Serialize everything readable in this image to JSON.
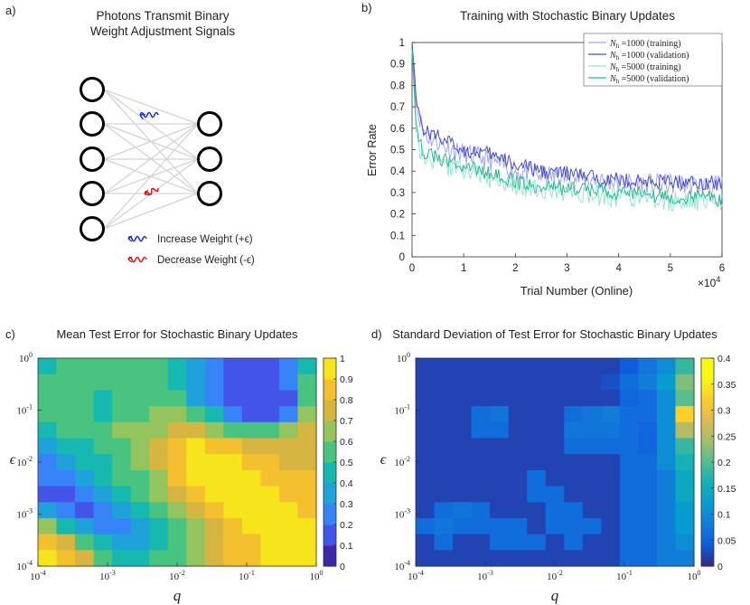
{
  "panels": {
    "a": {
      "letter": "a)",
      "title_line1": "Photons Transmit Binary",
      "title_line2": "Weight Adjustment Signals",
      "legend": [
        {
          "text": "Increase Weight (+ϵ)",
          "color": "#1f2fd6"
        },
        {
          "text": "Decrease Weight (-ϵ)",
          "color": "#e01818"
        }
      ]
    },
    "b": {
      "letter": "b)"
    },
    "c": {
      "letter": "c)"
    },
    "d": {
      "letter": "d)"
    }
  },
  "chart_data": [
    {
      "type": "line",
      "title": "Training with Stochastic Binary Updates",
      "xlabel": "Trial Number (Online)",
      "ylabel": "Error Rate",
      "x_multiplier": "×10^4",
      "xlim": [
        0,
        60000
      ],
      "ylim": [
        0,
        1
      ],
      "xticks": [
        0,
        1,
        2,
        3,
        4,
        5,
        6
      ],
      "yticks": [
        0,
        0.1,
        0.2,
        0.3,
        0.4,
        0.5,
        0.6,
        0.7,
        0.8,
        0.9,
        1
      ],
      "legend_position": "top-right",
      "x": [
        0,
        500,
        1000,
        2000,
        3000,
        4000,
        5000,
        6000,
        8000,
        10000,
        12000,
        15000,
        20000,
        25000,
        30000,
        35000,
        40000,
        45000,
        50000,
        55000,
        60000
      ],
      "series": [
        {
          "name": "N_h =1000 (training)",
          "name_math": "N",
          "name_sub": "h",
          "name_rest": " =1000 (training)",
          "color": "#a3a6e8",
          "noise": 0.05,
          "values": [
            1.0,
            0.82,
            0.7,
            0.6,
            0.56,
            0.55,
            0.54,
            0.52,
            0.5,
            0.48,
            0.47,
            0.45,
            0.4,
            0.38,
            0.37,
            0.36,
            0.35,
            0.34,
            0.34,
            0.33,
            0.33
          ]
        },
        {
          "name": "N_h =1000 (validation)",
          "name_math": "N",
          "name_sub": "h",
          "name_rest": " =1000 (validation)",
          "color": "#4a4fc8",
          "noise": 0.035,
          "values": [
            1.0,
            0.85,
            0.72,
            0.6,
            0.58,
            0.57,
            0.57,
            0.55,
            0.52,
            0.5,
            0.49,
            0.48,
            0.43,
            0.4,
            0.39,
            0.37,
            0.36,
            0.35,
            0.35,
            0.35,
            0.34
          ]
        },
        {
          "name": "N_h =5000 (training)",
          "name_math": "N",
          "name_sub": "h",
          "name_rest": " =5000 (training)",
          "color": "#98e4d0",
          "noise": 0.05,
          "values": [
            0.97,
            0.72,
            0.55,
            0.47,
            0.46,
            0.45,
            0.44,
            0.43,
            0.42,
            0.41,
            0.39,
            0.37,
            0.33,
            0.31,
            0.3,
            0.29,
            0.28,
            0.27,
            0.26,
            0.26,
            0.25
          ]
        },
        {
          "name": "N_h =5000 (validation)",
          "name_math": "N",
          "name_sub": "h",
          "name_rest": " =5000 (validation)",
          "color": "#2fb89a",
          "noise": 0.035,
          "values": [
            0.97,
            0.75,
            0.58,
            0.5,
            0.48,
            0.47,
            0.46,
            0.45,
            0.44,
            0.43,
            0.41,
            0.39,
            0.35,
            0.33,
            0.32,
            0.31,
            0.3,
            0.29,
            0.28,
            0.28,
            0.27
          ]
        }
      ]
    },
    {
      "type": "heatmap",
      "title": "Mean Test Error for Stochastic Binary Updates",
      "xlabel": "q",
      "ylabel": "ϵ",
      "x_scale": "log",
      "y_scale": "log",
      "x_ticks": [
        {
          "b": "10",
          "e": "-4"
        },
        {
          "b": "10",
          "e": "-3"
        },
        {
          "b": "10",
          "e": "-2"
        },
        {
          "b": "10",
          "e": "-1"
        },
        {
          "b": "10",
          "e": "0"
        }
      ],
      "y_ticks": [
        {
          "b": "10",
          "e": "0"
        },
        {
          "b": "10",
          "e": "-1"
        },
        {
          "b": "10",
          "e": "-2"
        },
        {
          "b": "10",
          "e": "-3"
        },
        {
          "b": "10",
          "e": "-4"
        }
      ],
      "xlim": [
        0.0001,
        1
      ],
      "ylim": [
        0.0001,
        1
      ],
      "colorbar_ticks": [
        "0",
        "0.1",
        "0.2",
        "0.3",
        "0.4",
        "0.5",
        "0.6",
        "0.7",
        "0.8",
        "0.9",
        "1"
      ],
      "clim": [
        0,
        1
      ],
      "z": [
        [
          0.48,
          0.5,
          0.52,
          0.55,
          0.58,
          0.58,
          0.55,
          0.45,
          0.3,
          0.22,
          0.18,
          0.14,
          0.14,
          0.2,
          0.45
        ],
        [
          0.55,
          0.52,
          0.52,
          0.52,
          0.55,
          0.58,
          0.55,
          0.48,
          0.32,
          0.22,
          0.16,
          0.12,
          0.12,
          0.2,
          0.5
        ],
        [
          0.55,
          0.55,
          0.5,
          0.48,
          0.5,
          0.55,
          0.58,
          0.52,
          0.38,
          0.25,
          0.18,
          0.12,
          0.1,
          0.18,
          0.55
        ],
        [
          0.55,
          0.58,
          0.5,
          0.45,
          0.5,
          0.55,
          0.62,
          0.62,
          0.55,
          0.4,
          0.25,
          0.15,
          0.12,
          0.2,
          0.62
        ],
        [
          0.48,
          0.5,
          0.55,
          0.58,
          0.6,
          0.62,
          0.66,
          0.75,
          0.72,
          0.66,
          0.58,
          0.52,
          0.55,
          0.62,
          0.75
        ],
        [
          0.38,
          0.42,
          0.48,
          0.55,
          0.58,
          0.62,
          0.75,
          0.88,
          0.9,
          0.88,
          0.8,
          0.75,
          0.72,
          0.72,
          0.72
        ],
        [
          0.25,
          0.3,
          0.42,
          0.48,
          0.55,
          0.62,
          0.72,
          0.88,
          0.92,
          0.92,
          0.9,
          0.85,
          0.8,
          0.75,
          0.75
        ],
        [
          0.2,
          0.22,
          0.32,
          0.42,
          0.5,
          0.58,
          0.68,
          0.8,
          0.9,
          0.92,
          0.92,
          0.9,
          0.85,
          0.8,
          0.8
        ],
        [
          0.15,
          0.18,
          0.22,
          0.32,
          0.42,
          0.55,
          0.62,
          0.72,
          0.85,
          0.9,
          0.92,
          0.92,
          0.9,
          0.85,
          0.85
        ],
        [
          0.35,
          0.22,
          0.18,
          0.2,
          0.3,
          0.42,
          0.55,
          0.62,
          0.72,
          0.85,
          0.9,
          0.92,
          0.92,
          0.9,
          0.88
        ],
        [
          0.62,
          0.45,
          0.3,
          0.22,
          0.25,
          0.35,
          0.48,
          0.58,
          0.65,
          0.75,
          0.85,
          0.9,
          0.92,
          0.92,
          0.9
        ],
        [
          0.88,
          0.75,
          0.55,
          0.4,
          0.32,
          0.35,
          0.45,
          0.55,
          0.62,
          0.7,
          0.8,
          0.88,
          0.9,
          0.92,
          0.92
        ],
        [
          0.92,
          0.88,
          0.72,
          0.58,
          0.48,
          0.45,
          0.5,
          0.58,
          0.65,
          0.72,
          0.8,
          0.85,
          0.9,
          0.9,
          0.92
        ]
      ]
    },
    {
      "type": "heatmap",
      "title": "Standard Deviation of Test Error for Stochastic Binary Updates",
      "xlabel": "q",
      "ylabel": "ϵ",
      "x_scale": "log",
      "y_scale": "log",
      "x_ticks": [
        {
          "b": "10",
          "e": "-4"
        },
        {
          "b": "10",
          "e": "-3"
        },
        {
          "b": "10",
          "e": "-2"
        },
        {
          "b": "10",
          "e": "-1"
        },
        {
          "b": "10",
          "e": "0"
        }
      ],
      "y_ticks": [
        {
          "b": "10",
          "e": "0"
        },
        {
          "b": "10",
          "e": "-1"
        },
        {
          "b": "10",
          "e": "-2"
        },
        {
          "b": "10",
          "e": "-3"
        },
        {
          "b": "10",
          "e": "-4"
        }
      ],
      "xlim": [
        0.0001,
        1
      ],
      "ylim": [
        0.0001,
        1
      ],
      "colorbar_ticks": [
        "0",
        "0.05",
        "0.1",
        "0.15",
        "0.2",
        "0.25",
        "0.3",
        "0.35",
        "0.4"
      ],
      "clim": [
        0,
        0.4
      ],
      "z": [
        [
          0.02,
          0.02,
          0.02,
          0.02,
          0.02,
          0.02,
          0.02,
          0.02,
          0.02,
          0.02,
          0.02,
          0.04,
          0.07,
          0.1,
          0.18
        ],
        [
          0.02,
          0.02,
          0.02,
          0.02,
          0.02,
          0.02,
          0.02,
          0.02,
          0.02,
          0.02,
          0.03,
          0.06,
          0.08,
          0.12,
          0.22
        ],
        [
          0.02,
          0.02,
          0.02,
          0.02,
          0.02,
          0.02,
          0.02,
          0.02,
          0.02,
          0.02,
          0.02,
          0.05,
          0.06,
          0.1,
          0.2
        ],
        [
          0.02,
          0.02,
          0.02,
          0.06,
          0.07,
          0.02,
          0.02,
          0.02,
          0.06,
          0.07,
          0.08,
          0.06,
          0.06,
          0.1,
          0.32
        ],
        [
          0.02,
          0.02,
          0.02,
          0.06,
          0.06,
          0.02,
          0.02,
          0.02,
          0.07,
          0.07,
          0.07,
          0.06,
          0.05,
          0.1,
          0.25
        ],
        [
          0.02,
          0.02,
          0.02,
          0.02,
          0.02,
          0.02,
          0.02,
          0.02,
          0.06,
          0.06,
          0.06,
          0.06,
          0.05,
          0.1,
          0.18
        ],
        [
          0.02,
          0.02,
          0.02,
          0.02,
          0.02,
          0.02,
          0.02,
          0.02,
          0.02,
          0.02,
          0.02,
          0.06,
          0.06,
          0.1,
          0.16
        ],
        [
          0.02,
          0.02,
          0.02,
          0.02,
          0.02,
          0.02,
          0.06,
          0.02,
          0.02,
          0.02,
          0.02,
          0.06,
          0.06,
          0.08,
          0.14
        ],
        [
          0.02,
          0.02,
          0.02,
          0.02,
          0.02,
          0.02,
          0.06,
          0.06,
          0.02,
          0.02,
          0.02,
          0.06,
          0.06,
          0.08,
          0.14
        ],
        [
          0.02,
          0.06,
          0.07,
          0.06,
          0.02,
          0.02,
          0.02,
          0.06,
          0.06,
          0.02,
          0.02,
          0.06,
          0.06,
          0.08,
          0.12
        ],
        [
          0.06,
          0.07,
          0.06,
          0.06,
          0.06,
          0.06,
          0.02,
          0.06,
          0.06,
          0.06,
          0.02,
          0.06,
          0.06,
          0.08,
          0.12
        ],
        [
          0.02,
          0.06,
          0.02,
          0.02,
          0.06,
          0.06,
          0.06,
          0.02,
          0.06,
          0.02,
          0.02,
          0.06,
          0.06,
          0.08,
          0.1
        ],
        [
          0.02,
          0.02,
          0.02,
          0.02,
          0.02,
          0.02,
          0.02,
          0.02,
          0.02,
          0.02,
          0.02,
          0.06,
          0.06,
          0.08,
          0.08
        ]
      ]
    }
  ]
}
